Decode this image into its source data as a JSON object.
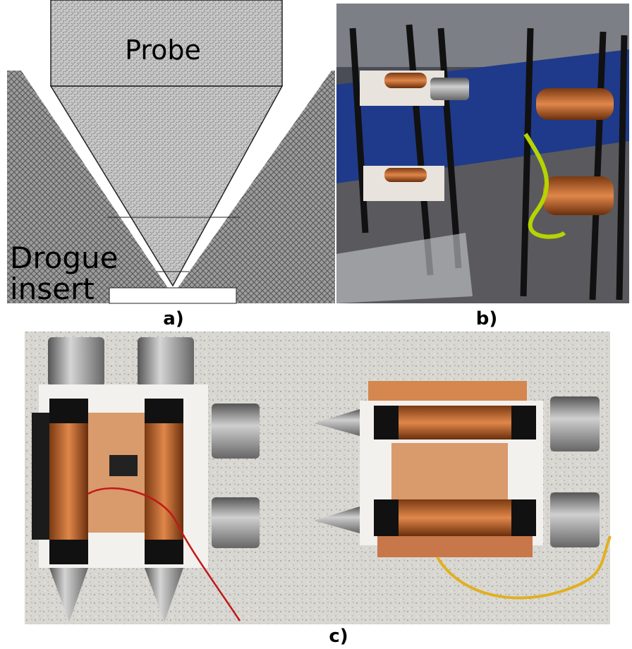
{
  "panel_a": {
    "probe_label": "Probe",
    "drogue_label": [
      "Drogue",
      "insert"
    ],
    "caption": "a)"
  },
  "panel_b": {
    "caption": "b)"
  },
  "panel_c": {
    "caption": "c)"
  }
}
